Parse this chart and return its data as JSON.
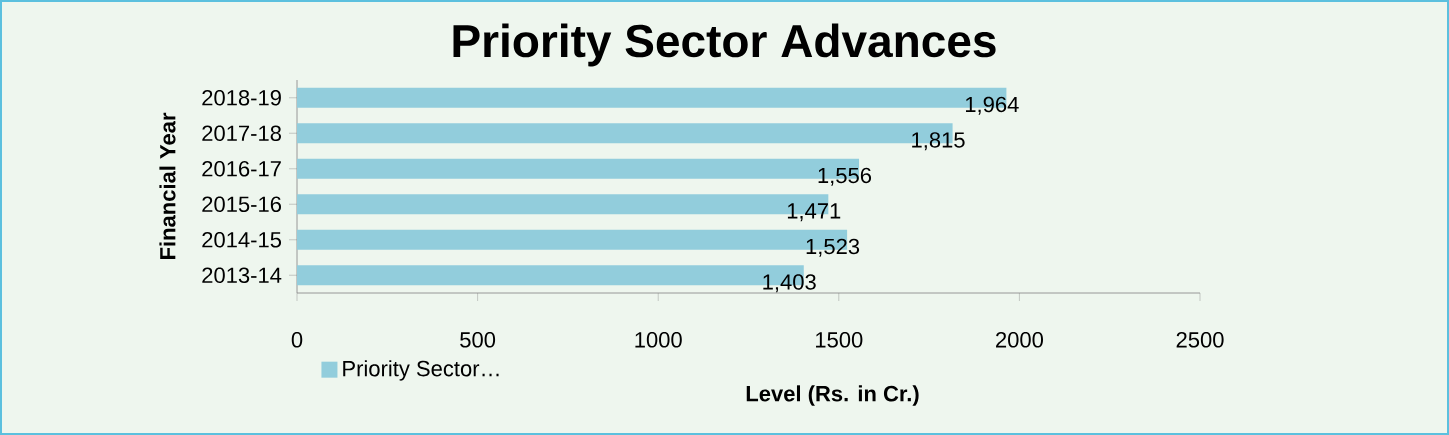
{
  "chart_data": {
    "type": "bar",
    "orientation": "horizontal",
    "title": "Priority Sector Advances",
    "xlabel": "Level (Rs. in Cr.)",
    "ylabel": "Financial Year",
    "categories": [
      "2018-19",
      "2017-18",
      "2016-17",
      "2015-16",
      "2014-15",
      "2013-14"
    ],
    "series": [
      {
        "name": "Priority Sector…",
        "color": "#92cddc",
        "values": [
          1964,
          1815,
          1556,
          1471,
          1523,
          1403
        ],
        "value_labels": [
          "1,964",
          "1,815",
          "1,556",
          "1,471",
          "1,523",
          "1,403"
        ]
      }
    ],
    "xlim": [
      0,
      2500
    ],
    "xticks": [
      0,
      500,
      1000,
      1500,
      2000,
      2500
    ],
    "legend": "bottom"
  }
}
